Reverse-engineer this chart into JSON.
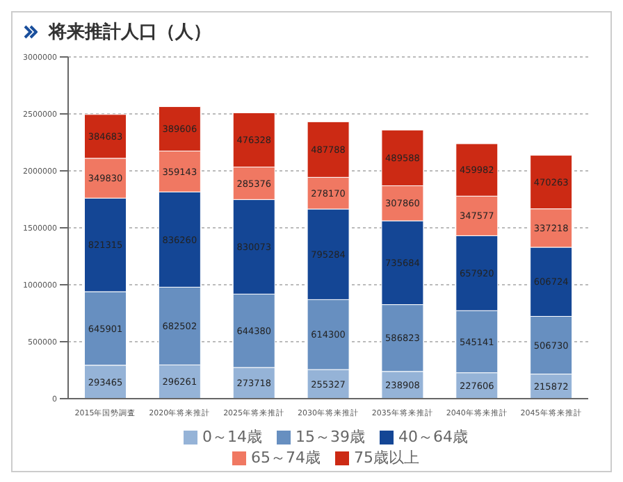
{
  "chart_data": {
    "type": "bar",
    "title": "将来推計人口（人）",
    "stacked": true,
    "categories": [
      "2015年国勢調査",
      "2020年将来推計",
      "2025年将来推計",
      "2030年将来推計",
      "2035年将来推計",
      "2040年将来推計",
      "2045年将来推計"
    ],
    "series": [
      {
        "name": "0～14歳",
        "color": "#95b3d7",
        "values": [
          293465,
          296261,
          273718,
          255327,
          238908,
          227606,
          215872
        ]
      },
      {
        "name": "15～39歳",
        "color": "#678fc0",
        "values": [
          645901,
          682502,
          644380,
          614300,
          586823,
          545141,
          506730
        ]
      },
      {
        "name": "40～64歳",
        "color": "#144695",
        "values": [
          821315,
          836260,
          830073,
          795284,
          735684,
          657920,
          606724
        ]
      },
      {
        "name": "65～74歳",
        "color": "#f07862",
        "values": [
          349830,
          359143,
          285376,
          278170,
          307860,
          347577,
          337218
        ]
      },
      {
        "name": "75歳以上",
        "color": "#cc2a14",
        "values": [
          384683,
          389606,
          476328,
          487788,
          489588,
          459982,
          470263
        ]
      }
    ],
    "ylim": [
      0,
      3000000
    ],
    "yticks": [
      0,
      500000,
      1000000,
      1500000,
      2000000,
      2500000,
      3000000
    ],
    "grid": "y",
    "legend": "bottom",
    "data_labels": true
  }
}
